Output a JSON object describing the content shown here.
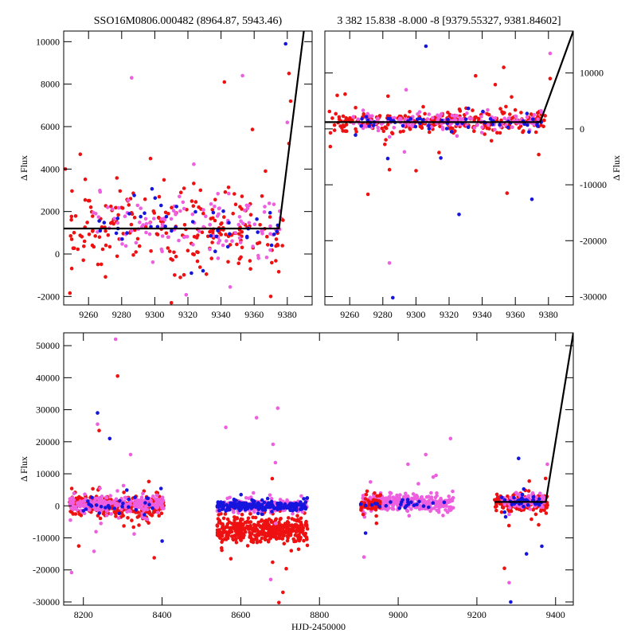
{
  "colors": {
    "red": "#ee1111",
    "magenta": "#ee5fe0",
    "blue": "#1515dd",
    "model": "#000000"
  },
  "chart_data": [
    {
      "type": "scatter",
      "title": "SSO16M0806.000482 (8964.87, 5943.46)",
      "xlabel": "",
      "ylabel": "Δ Flux",
      "ylabel_side": "left",
      "xlim": [
        9245,
        9395
      ],
      "ylim": [
        -2400,
        10500
      ],
      "xticks": [
        9260,
        9280,
        9300,
        9320,
        9340,
        9360,
        9380
      ],
      "yticks": [
        -2000,
        0,
        2000,
        4000,
        6000,
        8000,
        10000
      ],
      "grid": false,
      "legend": "none",
      "series_colors": [
        "red",
        "magenta",
        "blue"
      ],
      "segments": [
        {
          "x_from": 9248,
          "x_to": 9378,
          "y_level": 1200,
          "color": "red",
          "n": 230,
          "scatter": 900,
          "scatter_tail": 2200
        },
        {
          "x_from": 9262,
          "x_to": 9376,
          "y_level": 1300,
          "color": "magenta",
          "n": 120,
          "scatter": 700,
          "scatter_tail": 1800
        },
        {
          "x_from": 9262,
          "x_to": 9376,
          "y_level": 1200,
          "color": "blue",
          "n": 45,
          "scatter": 700,
          "scatter_tail": 1200
        }
      ],
      "extra_points": [
        {
          "x": 9379,
          "y": 9900,
          "color": "blue"
        },
        {
          "x": 9381,
          "y": 8500,
          "color": "red"
        },
        {
          "x": 9382,
          "y": 7200,
          "color": "red"
        },
        {
          "x": 9380,
          "y": 6200,
          "color": "magenta"
        },
        {
          "x": 9381,
          "y": 5200,
          "color": "red"
        },
        {
          "x": 9286,
          "y": 8300,
          "color": "magenta"
        },
        {
          "x": 9342,
          "y": 8100,
          "color": "red"
        },
        {
          "x": 9353,
          "y": 8400,
          "color": "magenta"
        },
        {
          "x": 9255,
          "y": 4700,
          "color": "red"
        },
        {
          "x": 9246,
          "y": 4000,
          "color": "red"
        },
        {
          "x": 9310,
          "y": -2300,
          "color": "red"
        },
        {
          "x": 9370,
          "y": -2000,
          "color": "red"
        }
      ],
      "model_line": [
        [
          9245,
          1200
        ],
        [
          9375,
          1200
        ],
        [
          9390,
          10500
        ]
      ]
    },
    {
      "type": "scatter",
      "title": "3 382 15.838 -8.000 -8 [9379.55327, 9381.84602]",
      "xlabel": "",
      "ylabel": "Δ Flux",
      "ylabel_side": "right",
      "xlim": [
        9245,
        9395
      ],
      "ylim": [
        -31500,
        17500
      ],
      "xticks": [
        9260,
        9280,
        9300,
        9320,
        9340,
        9360,
        9380
      ],
      "yticks": [
        -30000,
        -20000,
        -10000,
        0,
        10000
      ],
      "grid": false,
      "legend": "none",
      "series_colors": [
        "red",
        "magenta",
        "blue"
      ],
      "segments": [
        {
          "x_from": 9246,
          "x_to": 9378,
          "y_level": 1200,
          "color": "red",
          "n": 300,
          "scatter": 900,
          "scatter_tail": 3500
        },
        {
          "x_from": 9262,
          "x_to": 9376,
          "y_level": 1300,
          "color": "magenta",
          "n": 150,
          "scatter": 800,
          "scatter_tail": 2500
        },
        {
          "x_from": 9262,
          "x_to": 9376,
          "y_level": 1200,
          "color": "blue",
          "n": 55,
          "scatter": 700,
          "scatter_tail": 1800
        }
      ],
      "extra_points": [
        {
          "x": 9306,
          "y": 14800,
          "color": "blue"
        },
        {
          "x": 9381,
          "y": 13500,
          "color": "magenta"
        },
        {
          "x": 9381,
          "y": 9000,
          "color": "red"
        },
        {
          "x": 9353,
          "y": 11000,
          "color": "red"
        },
        {
          "x": 9336,
          "y": 9500,
          "color": "red"
        },
        {
          "x": 9271,
          "y": -11700,
          "color": "red"
        },
        {
          "x": 9284,
          "y": -24000,
          "color": "magenta"
        },
        {
          "x": 9286,
          "y": -30200,
          "color": "blue"
        },
        {
          "x": 9326,
          "y": -15300,
          "color": "blue"
        },
        {
          "x": 9355,
          "y": -11500,
          "color": "red"
        },
        {
          "x": 9370,
          "y": -12600,
          "color": "blue"
        },
        {
          "x": 9283,
          "y": -5300,
          "color": "blue"
        },
        {
          "x": 9315,
          "y": -5200,
          "color": "blue"
        },
        {
          "x": 9284,
          "y": -7300,
          "color": "red"
        }
      ],
      "model_line": [
        [
          9245,
          1200
        ],
        [
          9375,
          1200
        ],
        [
          9395,
          17500
        ]
      ]
    },
    {
      "type": "scatter",
      "title": "",
      "xlabel": "HJD-2450000",
      "ylabel": "Δ Flux",
      "ylabel_side": "left",
      "xlim": [
        8150,
        9445
      ],
      "ylim": [
        -31000,
        54000
      ],
      "xticks": [
        8200,
        8400,
        8600,
        8800,
        9000,
        9200,
        9400
      ],
      "yticks": [
        -30000,
        -20000,
        -10000,
        0,
        10000,
        20000,
        30000,
        40000,
        50000
      ],
      "grid": false,
      "legend": "none",
      "series_colors": [
        "red",
        "magenta",
        "blue"
      ],
      "segments": [
        {
          "x_from": 8165,
          "x_to": 8405,
          "y_level": 200,
          "color": "red",
          "n": 300,
          "scatter": 1600,
          "scatter_tail": 4500
        },
        {
          "x_from": 8165,
          "x_to": 8405,
          "y_level": 500,
          "color": "magenta",
          "n": 260,
          "scatter": 1100,
          "scatter_tail": 4000
        },
        {
          "x_from": 8190,
          "x_to": 8400,
          "y_level": 200,
          "color": "blue",
          "n": 30,
          "scatter": 1500,
          "scatter_tail": 3000
        },
        {
          "x_from": 8540,
          "x_to": 8770,
          "y_level": -7500,
          "color": "red",
          "n": 420,
          "scatter": 2000,
          "scatter_tail": 5000
        },
        {
          "x_from": 8540,
          "x_to": 8770,
          "y_level": 0,
          "color": "magenta",
          "n": 200,
          "scatter": 800,
          "scatter_tail": 3000
        },
        {
          "x_from": 8540,
          "x_to": 8770,
          "y_level": -100,
          "color": "blue",
          "n": 220,
          "scatter": 700,
          "scatter_tail": 1500
        },
        {
          "x_from": 8905,
          "x_to": 9140,
          "y_level": 1000,
          "color": "magenta",
          "n": 320,
          "scatter": 1300,
          "scatter_tail": 3500
        },
        {
          "x_from": 8905,
          "x_to": 8960,
          "y_level": 500,
          "color": "red",
          "n": 50,
          "scatter": 1500,
          "scatter_tail": 3000
        },
        {
          "x_from": 8905,
          "x_to": 9140,
          "y_level": 500,
          "color": "blue",
          "n": 25,
          "scatter": 700,
          "scatter_tail": 1200
        },
        {
          "x_from": 9245,
          "x_to": 9380,
          "y_level": 1200,
          "color": "red",
          "n": 180,
          "scatter": 1200,
          "scatter_tail": 3500
        },
        {
          "x_from": 9262,
          "x_to": 9376,
          "y_level": 1300,
          "color": "magenta",
          "n": 110,
          "scatter": 1000,
          "scatter_tail": 3000
        },
        {
          "x_from": 9262,
          "x_to": 9376,
          "y_level": 1200,
          "color": "blue",
          "n": 35,
          "scatter": 800,
          "scatter_tail": 2000
        }
      ],
      "extra_points": [
        {
          "x": 8282,
          "y": 52000,
          "color": "magenta"
        },
        {
          "x": 8287,
          "y": 40500,
          "color": "red"
        },
        {
          "x": 8236,
          "y": 29000,
          "color": "blue"
        },
        {
          "x": 8236,
          "y": 25500,
          "color": "magenta"
        },
        {
          "x": 8240,
          "y": 23500,
          "color": "red"
        },
        {
          "x": 8267,
          "y": 21000,
          "color": "blue"
        },
        {
          "x": 8320,
          "y": 16000,
          "color": "magenta"
        },
        {
          "x": 8170,
          "y": -20800,
          "color": "magenta"
        },
        {
          "x": 8227,
          "y": -14200,
          "color": "magenta"
        },
        {
          "x": 8380,
          "y": -16200,
          "color": "red"
        },
        {
          "x": 8400,
          "y": -11000,
          "color": "blue"
        },
        {
          "x": 8640,
          "y": 27500,
          "color": "magenta"
        },
        {
          "x": 8694,
          "y": 30500,
          "color": "magenta"
        },
        {
          "x": 8562,
          "y": 24500,
          "color": "magenta"
        },
        {
          "x": 8682,
          "y": 19200,
          "color": "magenta"
        },
        {
          "x": 8688,
          "y": 13500,
          "color": "magenta"
        },
        {
          "x": 8680,
          "y": 8500,
          "color": "red"
        },
        {
          "x": 8707,
          "y": -27000,
          "color": "red"
        },
        {
          "x": 8697,
          "y": -30200,
          "color": "red"
        },
        {
          "x": 8676,
          "y": -23000,
          "color": "magenta"
        },
        {
          "x": 9133,
          "y": 21000,
          "color": "magenta"
        },
        {
          "x": 9070,
          "y": 16000,
          "color": "magenta"
        },
        {
          "x": 9025,
          "y": 13000,
          "color": "magenta"
        },
        {
          "x": 9089,
          "y": 9000,
          "color": "magenta"
        },
        {
          "x": 8913,
          "y": -16000,
          "color": "magenta"
        },
        {
          "x": 8917,
          "y": -8500,
          "color": "blue"
        },
        {
          "x": 9306,
          "y": 14800,
          "color": "blue"
        },
        {
          "x": 9379,
          "y": 13000,
          "color": "magenta"
        },
        {
          "x": 9286,
          "y": -30000,
          "color": "blue"
        },
        {
          "x": 9282,
          "y": -24000,
          "color": "magenta"
        },
        {
          "x": 9270,
          "y": -19500,
          "color": "red"
        },
        {
          "x": 9326,
          "y": -15000,
          "color": "blue"
        },
        {
          "x": 9365,
          "y": -12600,
          "color": "blue"
        }
      ],
      "model_line": [
        [
          9245,
          1200
        ],
        [
          9375,
          1200
        ],
        [
          9445,
          54000
        ]
      ]
    }
  ]
}
